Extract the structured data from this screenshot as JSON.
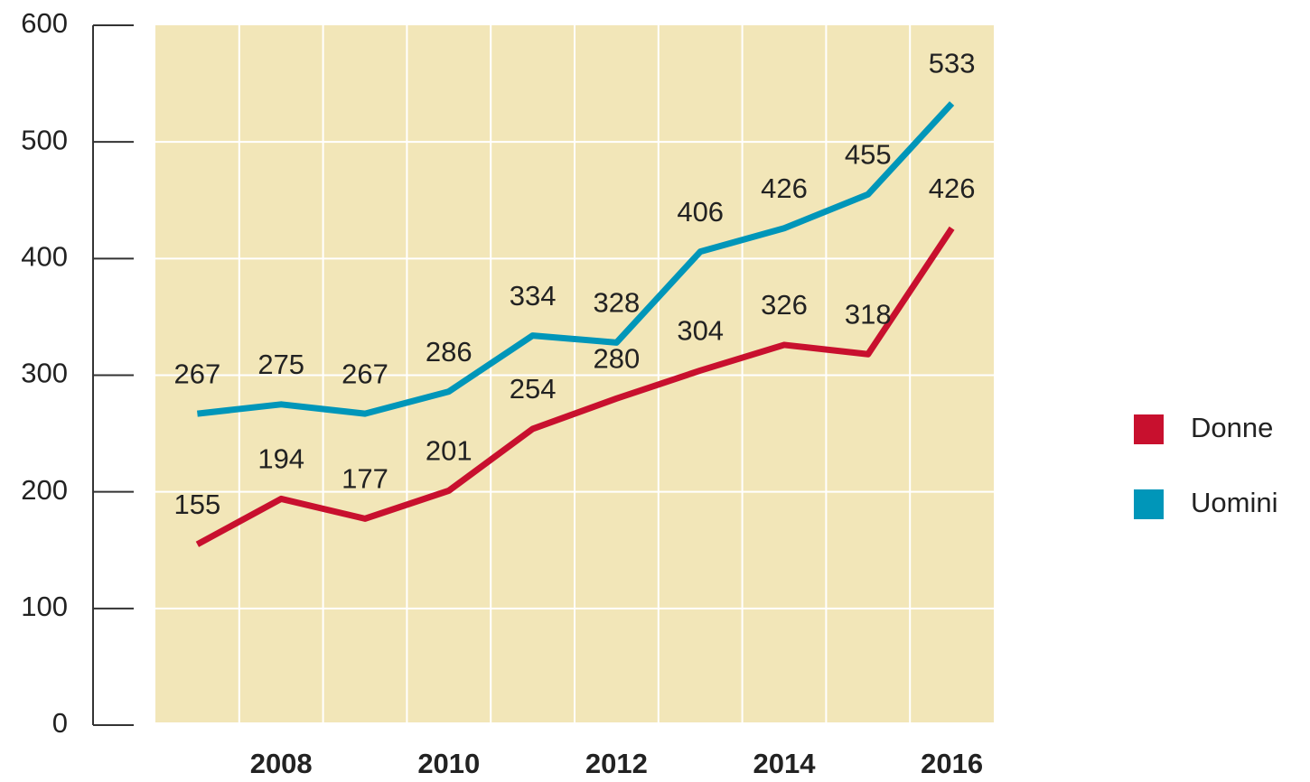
{
  "chart_data": {
    "type": "line",
    "categories": [
      null,
      "2008",
      null,
      "2010",
      null,
      "2012",
      null,
      "2014",
      null,
      "2016"
    ],
    "series": [
      {
        "name": "Donne",
        "color": "#c8102e",
        "values": [
          155,
          194,
          177,
          201,
          254,
          280,
          304,
          326,
          318,
          426
        ]
      },
      {
        "name": "Uomini",
        "color": "#0096b9",
        "values": [
          267,
          275,
          267,
          286,
          334,
          328,
          406,
          426,
          455,
          533
        ]
      }
    ],
    "ylim": [
      0,
      600
    ],
    "yticks": [
      0,
      100,
      200,
      300,
      400,
      500,
      600
    ],
    "grid": true,
    "legend": "right"
  }
}
